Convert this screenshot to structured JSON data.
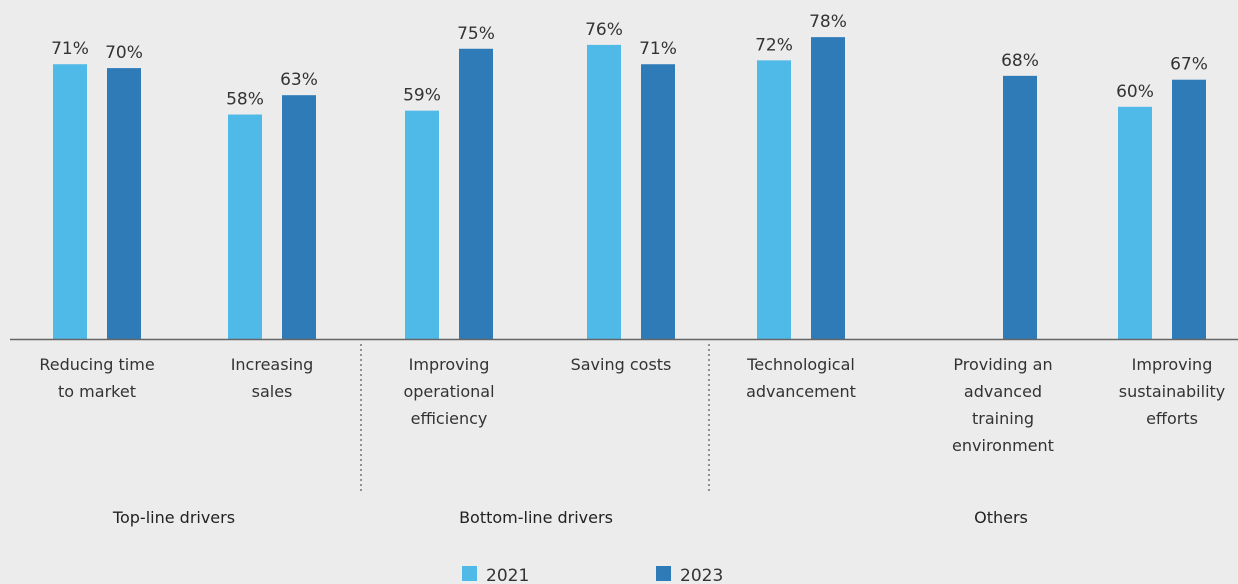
{
  "chart_data": {
    "type": "bar",
    "title": "",
    "xlabel": "",
    "ylabel": "",
    "ylim": [
      0,
      100
    ],
    "grid": false,
    "legend_position": "bottom-center",
    "categories": [
      [
        "Reducing time",
        "to market"
      ],
      [
        "Increasing",
        "sales"
      ],
      [
        "Improving",
        "operational",
        "efficiency"
      ],
      [
        "Saving costs"
      ],
      [
        "Technological",
        "advancement"
      ],
      [
        "Providing an",
        "advanced",
        "training",
        "environment"
      ],
      [
        "Improving",
        "sustainability",
        "efforts"
      ]
    ],
    "series": [
      {
        "name": "2021",
        "values": [
          71,
          58,
          59,
          76,
          72,
          null,
          60
        ],
        "labels": [
          "71%",
          "58%",
          "59%",
          "76%",
          "72%",
          "",
          "60%"
        ]
      },
      {
        "name": "2023",
        "values": [
          70,
          63,
          75,
          71,
          78,
          68,
          67
        ],
        "labels": [
          "70%",
          "63%",
          "75%",
          "71%",
          "78%",
          "68%",
          "67%"
        ]
      }
    ],
    "groups": [
      {
        "name": "Top-line drivers",
        "members": [
          0,
          1
        ]
      },
      {
        "name": "Bottom-line drivers",
        "members": [
          2,
          3
        ]
      },
      {
        "name": "Others",
        "members": [
          4,
          5,
          6
        ]
      }
    ],
    "colors": {
      "2021": "#4fb9e8",
      "2023": "#2e7bb8",
      "axis": "#666666",
      "divider": "#555555"
    }
  }
}
